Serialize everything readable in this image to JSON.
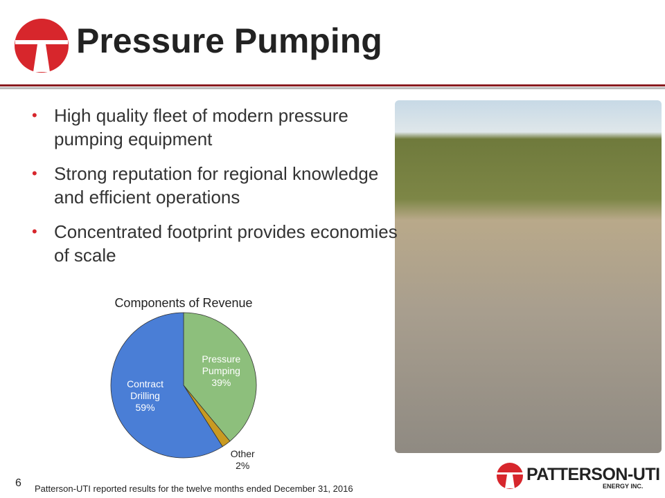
{
  "header": {
    "title": "Pressure Pumping"
  },
  "bullets": [
    "High quality fleet of modern pressure pumping equipment",
    "Strong reputation for regional knowledge and efficient operations",
    "Concentrated footprint provides economies of scale"
  ],
  "chart_data": {
    "type": "pie",
    "title": "Components of Revenue",
    "categories": [
      "Pressure Pumping",
      "Other",
      "Contract Drilling"
    ],
    "values": [
      39,
      2,
      59
    ],
    "value_labels": [
      "39%",
      "2%",
      "59%"
    ],
    "colors": [
      "#8dbf7c",
      "#c89a22",
      "#4a7ed6"
    ]
  },
  "footer": {
    "page": "6",
    "note": "Patterson-UTI reported results for the twelve months ended December 31, 2016",
    "logo": "PATTERSON-UTI",
    "logo_sub": "ENERGY INC."
  }
}
